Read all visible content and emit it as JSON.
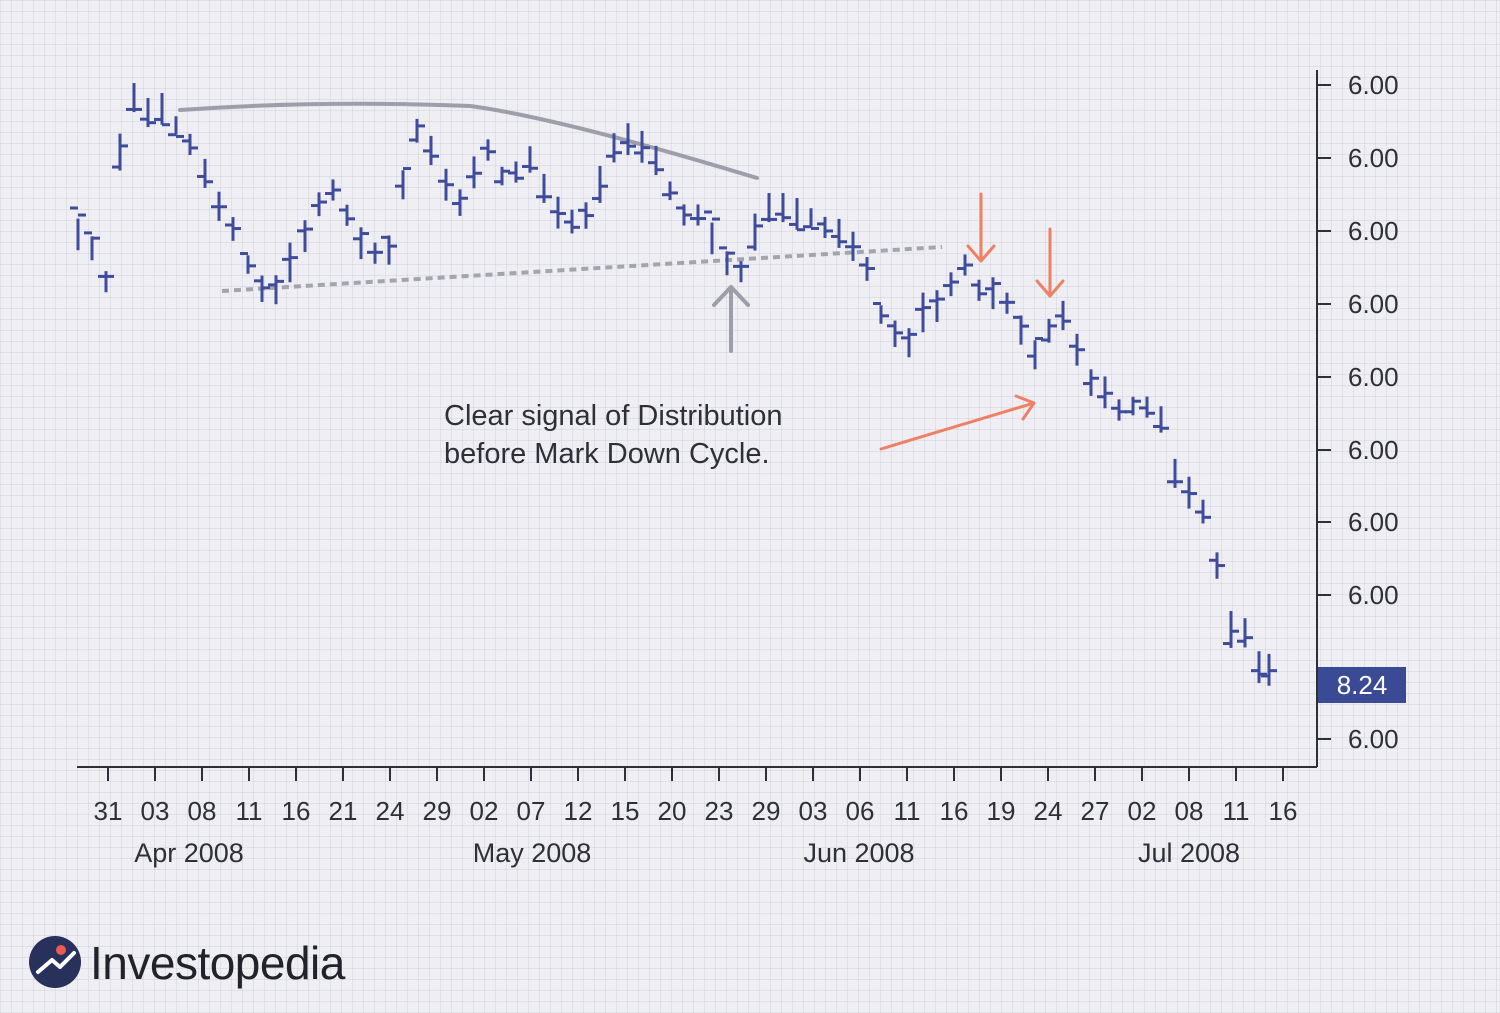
{
  "chart_data": {
    "type": "ohlc",
    "x_tick_labels": [
      "31",
      "03",
      "08",
      "11",
      "16",
      "21",
      "24",
      "29",
      "02",
      "07",
      "12",
      "15",
      "20",
      "23",
      "29",
      "03",
      "06",
      "11",
      "16",
      "19",
      "24",
      "27",
      "02",
      "08",
      "11",
      "16"
    ],
    "month_labels": [
      "Apr 2008",
      "May 2008",
      "Jun 2008",
      "Jul 2008"
    ],
    "y_tick_labels": [
      "6.00",
      "6.00",
      "6.00",
      "6.00",
      "6.00",
      "6.00",
      "6.00",
      "6.00",
      "6.00"
    ],
    "y_scale": "tick labels are all printed as 6.00; values below are read relative to the last price 8.24",
    "last_price_label": "8.24",
    "annotation": [
      "Clear signal of Distribution",
      "before Mark Down Cycle."
    ],
    "series": [
      {
        "bars": [
          {
            "o": 0,
            "h": 0.4,
            "l": 1.6,
            "c": 0.4
          },
          {
            "o": 1.3,
            "h": 1.3,
            "l": 1.6,
            "c": 1.6
          },
          {
            "o": 1.5,
            "h": 0.8,
            "l": 1.6,
            "c": 1.5
          },
          {
            "o": 0.4,
            "h": -1.0,
            "l": 0.4,
            "c": -0.8
          },
          {
            "o": -0.6,
            "h": -1.4,
            "l": -0.3,
            "c": -0.6
          },
          {
            "o": -0.9,
            "h": -1.4,
            "l": -0.3,
            "c": -0.7
          },
          {
            "o": -0.6,
            "h": -1.4,
            "l": -0.2,
            "c": -0.3
          },
          {
            "o": -0.3,
            "h": -0.9,
            "l": -0.2,
            "c": -0.2
          },
          {
            "o": -0.8,
            "h": -0.8,
            "l": 0.0,
            "c": -0.4
          },
          {
            "o": -0.2,
            "h": -0.8,
            "l": 0.3,
            "c": 0.1
          },
          {
            "o": 0.1,
            "h": -0.2,
            "l": 0.3,
            "c": 0.1
          },
          {
            "o": 0.0,
            "h": -0.3,
            "l": 0.6,
            "c": 0.2
          },
          {
            "o": 0.2,
            "h": 0.2,
            "l": 0.9,
            "c": 0.9
          },
          {
            "o": 0.9,
            "h": 0.4,
            "l": 1.4,
            "c": 1.3
          },
          {
            "o": 1.3,
            "h": 0.5,
            "l": 1.6,
            "c": 1.1
          },
          {
            "o": 1.1,
            "h": 0.1,
            "l": 1.6,
            "c": 1.0
          },
          {
            "o": 0.9,
            "h": 0.5,
            "l": 1.1,
            "c": 0.8
          },
          {
            "o": 0.6,
            "h": -0.1,
            "l": 0.8,
            "c": 0.4
          },
          {
            "o": 0.2,
            "h": -0.4,
            "l": 0.4,
            "c": 0.0
          },
          {
            "o": 0.0,
            "h": -0.2,
            "l": 0.6,
            "c": 0.5
          },
          {
            "o": 0.5,
            "h": 0.2,
            "l": 0.8,
            "c": 0.2
          },
          {
            "o": 0.7,
            "h": 0.1,
            "l": 0.9,
            "c": 0.7
          },
          {
            "o": 0.7,
            "h": 0.7,
            "l": 1.2,
            "c": 1.2
          },
          {
            "o": 1.2,
            "h": 0.2,
            "l": 1.3,
            "c": 0.2
          },
          {
            "o": 0.0,
            "h": -0.8,
            "l": 0.1,
            "c": -0.8
          },
          {
            "o": -0.8,
            "h": -0.8,
            "l": -0.3,
            "c": -0.5
          },
          {
            "o": -0.5,
            "h": -0.5,
            "l": 0.1,
            "c": -0.3
          },
          {
            "o": 0.2,
            "h": -0.1,
            "l": 0.3,
            "c": -0.1
          },
          {
            "o": 0.1,
            "h": -0.4,
            "l": 0.2,
            "c": -0.1
          },
          {
            "o": -0.1,
            "h": -0.1,
            "l": 0.1,
            "c": 0.1
          },
          {
            "o": 0.1,
            "h": -0.5,
            "l": 0.2,
            "c": -0.5
          },
          {
            "o": -0.4,
            "h": -0.7,
            "l": 0.1,
            "c": -0.1
          },
          {
            "o": -0.2,
            "h": -0.9,
            "l": 0.1,
            "c": -0.1
          },
          {
            "o": 0.1,
            "h": -0.8,
            "l": 0.3,
            "c": 0.1
          },
          {
            "o": 0.1,
            "h": -0.2,
            "l": 0.4,
            "c": 0.2
          },
          {
            "o": 0.4,
            "h": -0.2,
            "l": 0.7,
            "c": 0.7
          },
          {
            "o": 0.3,
            "h": -0.1,
            "l": 0.9,
            "c": 0.6
          },
          {
            "o": 0.2,
            "h": -1.1,
            "l": 0.3,
            "c": -0.5
          },
          {
            "o": -0.5,
            "h": -0.9,
            "l": -0.4,
            "c": -0.7
          },
          {
            "o": -0.7,
            "h": -0.9,
            "l": -0.3,
            "c": -0.5
          },
          {
            "o": -0.4,
            "h": -0.8,
            "l": -0.2,
            "c": -0.7
          },
          {
            "o": -0.7,
            "h": -0.8,
            "l": -0.3,
            "c": -0.3
          },
          {
            "o": -0.3,
            "h": -0.4,
            "l": -0.3,
            "c": -0.4
          },
          {
            "o": -0.4,
            "h": -0.4,
            "l": 0.4,
            "c": 0.0
          },
          {
            "o": 0.2,
            "h": -0.4,
            "l": 0.4,
            "c": 0.2
          }
        ]
      }
    ]
  }
}
